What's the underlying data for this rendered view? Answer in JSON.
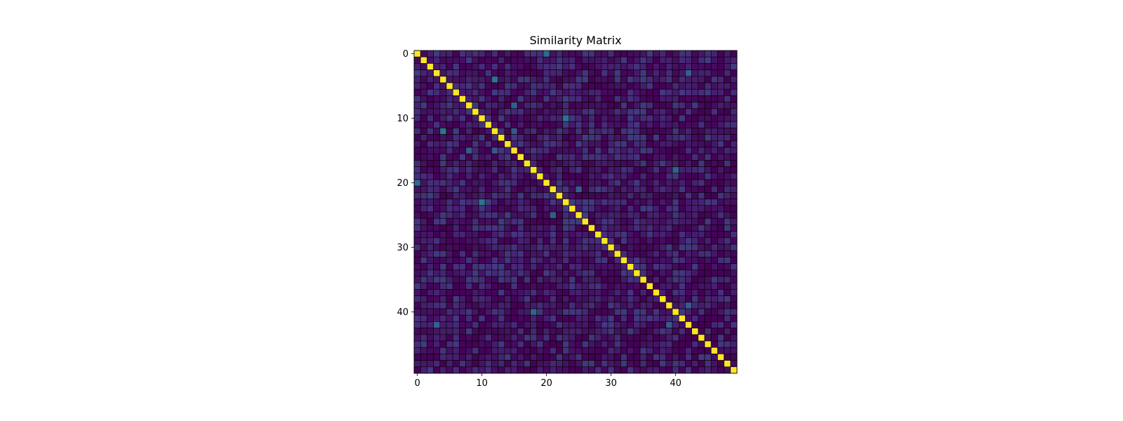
{
  "chart_data": {
    "type": "heatmap",
    "title": "Similarity Matrix",
    "xlabel": "",
    "ylabel": "",
    "size": 50,
    "colormap": "viridis",
    "value_range": [
      0.0,
      1.0
    ],
    "x_ticks": [
      0,
      10,
      20,
      30,
      40
    ],
    "y_ticks": [
      0,
      10,
      20,
      30,
      40
    ],
    "diagonal_value": 1.0,
    "background_value_range": [
      0.0,
      0.18
    ],
    "grid": true,
    "colorbar": false,
    "notable_offdiagonal": [
      {
        "row": 0,
        "col": 20,
        "value": 0.35
      },
      {
        "row": 20,
        "col": 0,
        "value": 0.35
      },
      {
        "row": 4,
        "col": 12,
        "value": 0.4
      },
      {
        "row": 12,
        "col": 4,
        "value": 0.4
      },
      {
        "row": 10,
        "col": 23,
        "value": 0.4
      },
      {
        "row": 23,
        "col": 10,
        "value": 0.4
      },
      {
        "row": 18,
        "col": 40,
        "value": 0.32
      },
      {
        "row": 40,
        "col": 18,
        "value": 0.32
      },
      {
        "row": 42,
        "col": 3,
        "value": 0.32
      },
      {
        "row": 3,
        "col": 42,
        "value": 0.32
      },
      {
        "row": 8,
        "col": 15,
        "value": 0.3
      },
      {
        "row": 15,
        "col": 8,
        "value": 0.3
      },
      {
        "row": 25,
        "col": 21,
        "value": 0.3
      },
      {
        "row": 21,
        "col": 25,
        "value": 0.3
      },
      {
        "row": 39,
        "col": 42,
        "value": 0.3
      },
      {
        "row": 42,
        "col": 39,
        "value": 0.3
      },
      {
        "row": 12,
        "col": 15,
        "value": 0.28
      },
      {
        "row": 15,
        "col": 12,
        "value": 0.28
      }
    ]
  }
}
